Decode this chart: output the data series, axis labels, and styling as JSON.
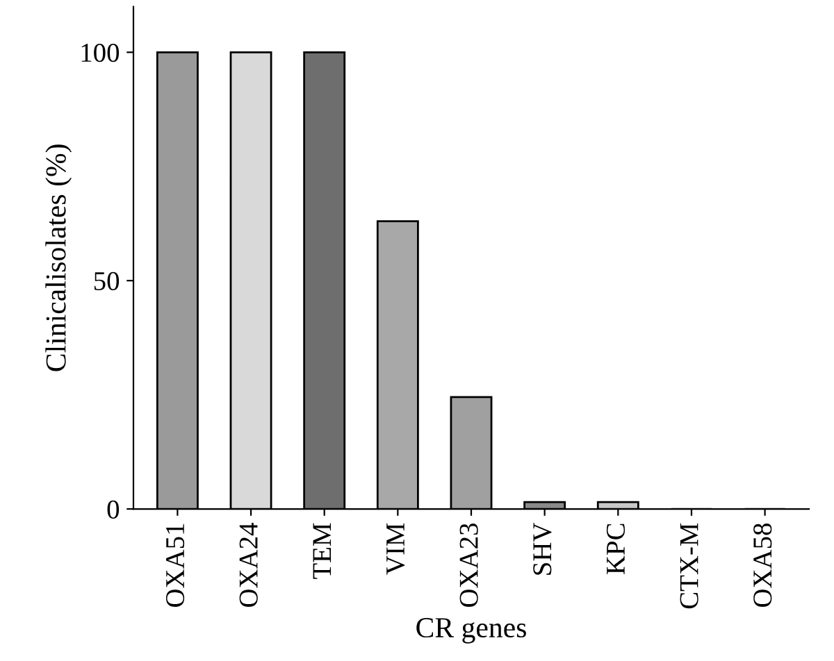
{
  "chart_data": {
    "type": "bar",
    "xlabel": "CR genes",
    "ylabel": "Clinicalisolates (%)",
    "categories": [
      "OXA51",
      "OXA24",
      "TEM",
      "VIM",
      "OXA23",
      "SHV",
      "KPC",
      "CTX-M",
      "OXA58"
    ],
    "values": [
      100,
      100,
      100,
      63,
      24.5,
      1.5,
      1.5,
      0,
      0
    ],
    "colors": [
      "#9a9a9a",
      "#d9d9d9",
      "#6e6e6e",
      "#a8a8a8",
      "#a0a0a0",
      "#8a8a8a",
      "#c8c8c8",
      "#000000",
      "#000000"
    ],
    "ylim": [
      0,
      110
    ],
    "yticks": [
      0,
      50,
      100
    ],
    "grid": false,
    "legend": false
  }
}
